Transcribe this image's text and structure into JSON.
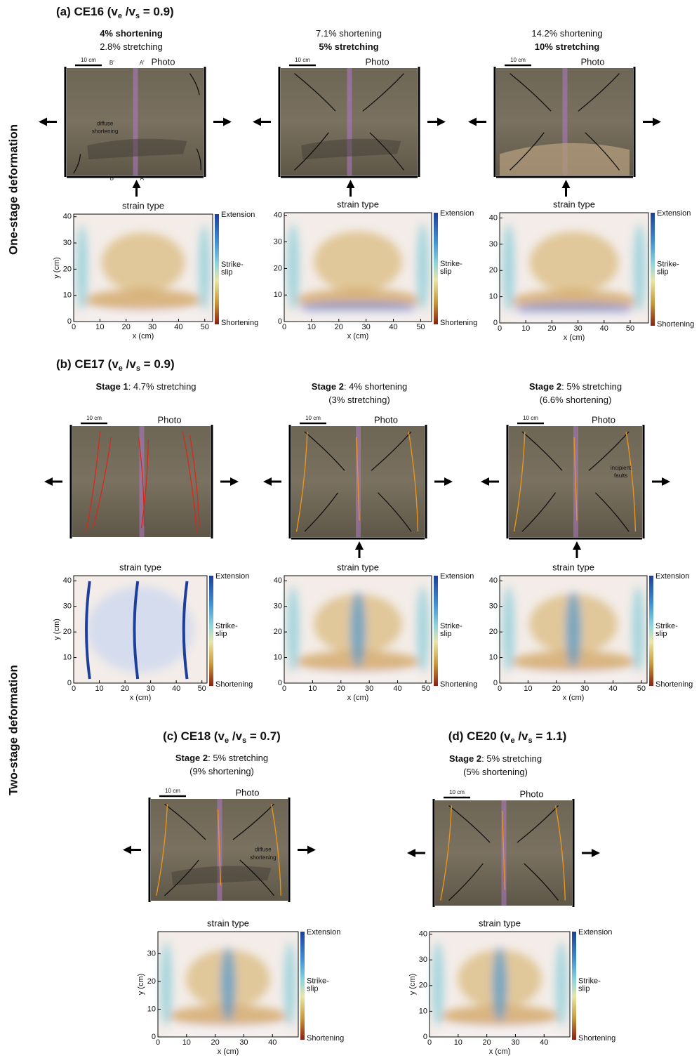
{
  "row_labels": [
    "One-stage deformation",
    "Two-stage deformation"
  ],
  "panels": [
    {
      "title": {
        "lead": "(a) CE16 (v",
        "sub1": "e",
        "mid": " /v",
        "sub2": "s",
        "tail": "  = 0.9)"
      },
      "columns": [
        {
          "caption": [
            [
              {
                "text": "4% shortening",
                "bold": true
              }
            ],
            [
              {
                "text": "2.8% stretching"
              }
            ]
          ],
          "photo": {
            "scale": "10 cm",
            "label": "Photo",
            "push_arrow": true,
            "annotations": [
              "B'",
              "A'",
              "diffuse",
              "shortening",
              "B",
              "A"
            ]
          },
          "map": {
            "title": "strain type",
            "xlabel": "x (cm)",
            "ylabel": "y (cm)",
            "xlim": [
              0,
              53
            ],
            "ylim": [
              0,
              41
            ],
            "xticks": [
              0,
              10,
              20,
              30,
              40,
              50
            ],
            "yticks": [
              0,
              10,
              20,
              30,
              40
            ],
            "colorbar": {
              "top": "Extension",
              "middle": [
                "Strike-",
                "slip"
              ],
              "bottom": "Shortening"
            }
          }
        },
        {
          "caption": [
            [
              {
                "text": "7.1% shortening"
              }
            ],
            [
              {
                "text": "5% stretching",
                "bold": true
              }
            ]
          ],
          "photo": {
            "scale": "10 cm",
            "label": "Photo",
            "push_arrow": true,
            "annotations": []
          },
          "map": {
            "title": "strain type",
            "xlabel": "x (cm)",
            "xlim": [
              0,
              54
            ],
            "ylim": [
              0,
              41
            ],
            "xticks": [
              0,
              10,
              20,
              30,
              40,
              50
            ],
            "yticks": [
              0,
              10,
              20,
              30,
              40
            ],
            "colorbar": {
              "top": "Extension",
              "middle": [
                "Strike-",
                "slip"
              ],
              "bottom": "Shortening"
            }
          }
        },
        {
          "caption": [
            [
              {
                "text": "14.2% shortening"
              }
            ],
            [
              {
                "text": "10% stretching",
                "bold": true
              }
            ]
          ],
          "photo": {
            "scale": "10 cm",
            "label": "Photo",
            "push_arrow": true,
            "annotations": []
          },
          "map": {
            "title": "strain type",
            "xlabel": "x (cm)",
            "xlim": [
              0,
              57
            ],
            "ylim": [
              0,
              42
            ],
            "xticks": [
              0,
              10,
              20,
              30,
              40,
              50
            ],
            "yticks": [
              0,
              10,
              20,
              30,
              40
            ],
            "colorbar": {
              "top": "Extension",
              "middle": [
                "Strike-",
                "slip"
              ],
              "bottom": "Shortening"
            }
          }
        }
      ]
    },
    {
      "title": {
        "lead": "(b) CE17 (v",
        "sub1": "e",
        "mid": " /v",
        "sub2": "s",
        "tail": "  = 0.9)"
      },
      "columns": [
        {
          "caption": [
            [
              {
                "text": "Stage 1",
                "bold": true
              },
              {
                "text": ": 4.7% stretching"
              }
            ]
          ],
          "photo": {
            "scale": "10 cm",
            "label": "Photo",
            "push_arrow": false,
            "annotations": []
          },
          "map": {
            "title": "strain type",
            "xlabel": "x (cm)",
            "ylabel": "y (cm)",
            "xlim": [
              0,
              52
            ],
            "ylim": [
              0,
              42
            ],
            "xticks": [
              0,
              10,
              20,
              30,
              40,
              50
            ],
            "yticks": [
              0,
              10,
              20,
              30,
              40
            ],
            "colorbar": {
              "top": "Extension",
              "middle": [
                "Strike-",
                "slip"
              ],
              "bottom": "Shortening"
            }
          }
        },
        {
          "caption": [
            [
              {
                "text": "Stage 2",
                "bold": true
              },
              {
                "text": ": 4% shortening"
              }
            ],
            [
              {
                "text": "(3% stretching)"
              }
            ]
          ],
          "photo": {
            "scale": "10 cm",
            "label": "Photo",
            "push_arrow": true,
            "annotations": []
          },
          "map": {
            "title": "strain type",
            "xlabel": "x (cm)",
            "xlim": [
              0,
              52
            ],
            "ylim": [
              0,
              42
            ],
            "xticks": [
              0,
              10,
              20,
              30,
              40,
              50
            ],
            "yticks": [
              0,
              10,
              20,
              30,
              40
            ],
            "colorbar": {
              "top": "Extension",
              "middle": [
                "Strike-",
                "slip"
              ],
              "bottom": "Shortening"
            }
          }
        },
        {
          "caption": [
            [
              {
                "text": "Stage 2",
                "bold": true
              },
              {
                "text": ": 5% stretching"
              }
            ],
            [
              {
                "text": "(6.6% shortening)"
              }
            ]
          ],
          "photo": {
            "scale": "10 cm",
            "label": "Photo",
            "push_arrow": true,
            "annotations": [
              "incipient",
              "faults"
            ]
          },
          "map": {
            "title": "strain type",
            "xlabel": "x (cm)",
            "xlim": [
              0,
              52
            ],
            "ylim": [
              0,
              42
            ],
            "xticks": [
              0,
              10,
              20,
              30,
              40,
              50
            ],
            "yticks": [
              0,
              10,
              20,
              30,
              40
            ],
            "colorbar": {
              "top": "Extension",
              "middle": [
                "Strike-",
                "slip"
              ],
              "bottom": "Shortening"
            }
          }
        }
      ]
    },
    {
      "title": {
        "lead": "(c) CE18 (v",
        "sub1": "e",
        "mid": " /v",
        "sub2": "s",
        "tail": "  = 0.7)"
      },
      "columns": [
        {
          "caption": [
            [
              {
                "text": "Stage 2",
                "bold": true
              },
              {
                "text": ": 5% stretching"
              }
            ],
            [
              {
                "text": "(9% shortening)"
              }
            ]
          ],
          "photo": {
            "scale": "10 cm",
            "label": "Photo",
            "push_arrow": false,
            "annotations": [
              "diffuse",
              "shortening"
            ]
          },
          "map": {
            "title": "strain type",
            "xlabel": "x (cm)",
            "ylabel": "y (cm)",
            "xlim": [
              0,
              49
            ],
            "ylim": [
              0,
              38
            ],
            "xticks": [
              0,
              10,
              20,
              30,
              40
            ],
            "yticks": [
              0,
              10,
              20,
              30
            ],
            "colorbar": {
              "top": "Extension",
              "middle": [
                "Strike-",
                "slip"
              ],
              "bottom": "Shortening"
            }
          }
        }
      ]
    },
    {
      "title": {
        "lead": "(d) CE20 (v",
        "sub1": "e",
        "mid": " /v",
        "sub2": "s",
        "tail": "  = 1.1)"
      },
      "columns": [
        {
          "caption": [
            [
              {
                "text": "Stage 2",
                "bold": true
              },
              {
                "text": ": 5% stretching"
              }
            ],
            [
              {
                "text": "(5% shortening)"
              }
            ]
          ],
          "photo": {
            "scale": "10 cm",
            "label": "Photo",
            "push_arrow": false,
            "annotations": []
          },
          "map": {
            "title": "strain type",
            "xlabel": "x (cm)",
            "ylabel": "y (cm)",
            "xlim": [
              0,
              49
            ],
            "ylim": [
              0,
              41
            ],
            "xticks": [
              0,
              10,
              20,
              30,
              40
            ],
            "yticks": [
              0,
              10,
              20,
              30,
              40
            ],
            "colorbar": {
              "top": "Extension",
              "middle": [
                "Strike-",
                "slip"
              ],
              "bottom": "Shortening"
            }
          }
        }
      ]
    }
  ]
}
